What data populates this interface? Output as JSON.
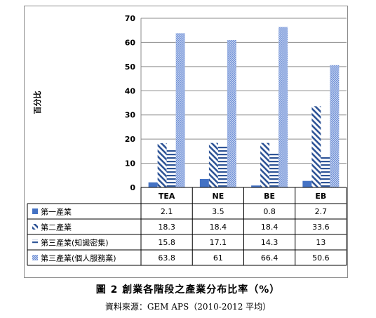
{
  "chart_data": {
    "type": "bar",
    "ylabel": "百分比",
    "ylim": [
      0,
      70
    ],
    "yticks": [
      "0",
      "10",
      "20",
      "30",
      "40",
      "50",
      "60",
      "70"
    ],
    "categories": [
      "TEA",
      "NE",
      "BE",
      "EB"
    ],
    "series": [
      {
        "name": "第一產業",
        "values": [
          2.1,
          3.5,
          0.8,
          2.7
        ],
        "value_labels": [
          "2.1",
          "3.5",
          "0.8",
          "2.7"
        ],
        "color": "#4472c4",
        "pattern": "solid"
      },
      {
        "name": "第二產業",
        "values": [
          18.3,
          18.4,
          18.4,
          33.6
        ],
        "value_labels": [
          "18.3",
          "18.4",
          "18.4",
          "33.6"
        ],
        "color": "#2f5597",
        "pattern": "diagonal"
      },
      {
        "name": "第三產業(知識密集)",
        "values": [
          15.8,
          17.1,
          14.3,
          13
        ],
        "value_labels": [
          "15.8",
          "17.1",
          "14.3",
          "13"
        ],
        "color": "#2f5597",
        "pattern": "horizontal"
      },
      {
        "name": "第三產業(個人服務業)",
        "values": [
          63.8,
          61,
          66.4,
          50.6
        ],
        "value_labels": [
          "63.8",
          "61",
          "66.4",
          "50.6"
        ],
        "color": "#7f9fdd",
        "pattern": "dotted"
      }
    ],
    "grid": true,
    "legend": "table-below"
  },
  "figure_caption": "圖 2 創業各階段之產業分布比率（%）",
  "source_caption": "資料來源：GEM APS（2010-2012 平均）"
}
